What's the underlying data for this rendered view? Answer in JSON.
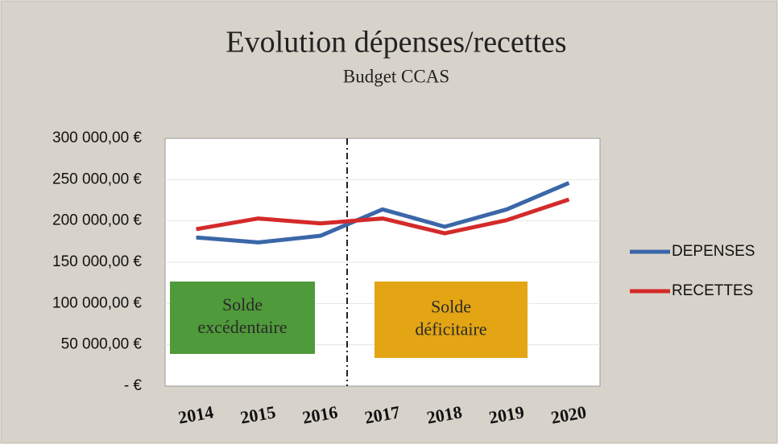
{
  "chart_data": {
    "type": "line",
    "title": "Evolution dépenses/recettes",
    "subtitle": "Budget CCAS",
    "categories": [
      "2014",
      "2015",
      "2016",
      "2017",
      "2018",
      "2019",
      "2020"
    ],
    "series": [
      {
        "name": "DEPENSES",
        "color": "#3b67a8",
        "values": [
          180000,
          174000,
          182000,
          214000,
          193000,
          214000,
          246000
        ]
      },
      {
        "name": "RECETTES",
        "color": "#d42a2a",
        "values": [
          190000,
          203000,
          197000,
          203000,
          185000,
          201000,
          226000
        ]
      }
    ],
    "ylim": [
      0,
      300000
    ],
    "yticks": [
      {
        "value": 0,
        "label": "-   €"
      },
      {
        "value": 50000,
        "label": "50 000,00 €"
      },
      {
        "value": 100000,
        "label": "100 000,00 €"
      },
      {
        "value": 150000,
        "label": "150 000,00 €"
      },
      {
        "value": 200000,
        "label": "200 000,00 €"
      },
      {
        "value": 250000,
        "label": "250 000,00 €"
      },
      {
        "value": 300000,
        "label": "300 000,00 €"
      }
    ],
    "grid": true,
    "legend": "right",
    "annotations": [
      {
        "lines": [
          "Solde",
          "excédentaire"
        ],
        "color": "#4f9a3a"
      },
      {
        "lines": [
          "Solde",
          "déficitaire"
        ],
        "color": "#e3a514"
      }
    ]
  }
}
